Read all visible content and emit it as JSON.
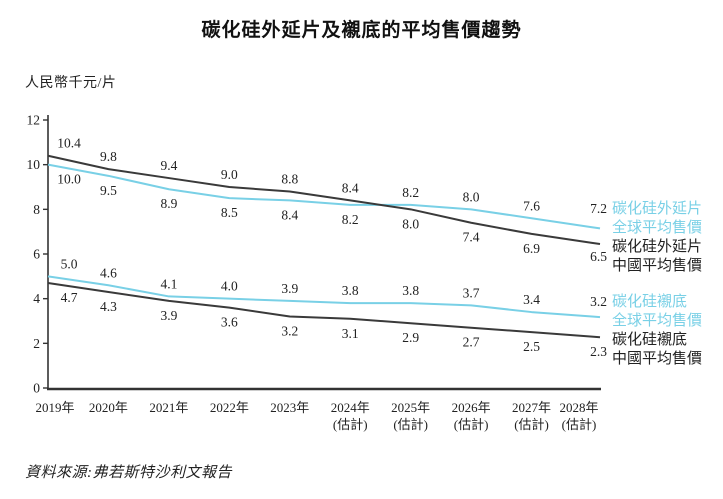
{
  "page": {
    "title": "碳化硅外延片及襯底的平均售價趨勢",
    "unit_label": "人民幣千元/片",
    "source": "資料來源:弗若斯特沙利文報告"
  },
  "colors": {
    "cyan_line": "#79d0e6",
    "black_line": "#3a3a3a",
    "axis": "#333333",
    "text": "#222222"
  },
  "chart_data": {
    "type": "line",
    "title": "碳化硅外延片及襯底的平均售價趨勢",
    "ylabel": "人民幣千元/片",
    "xlabel": "",
    "ylim": [
      0,
      12
    ],
    "yticks": [
      0,
      2,
      4,
      6,
      8,
      10,
      12
    ],
    "grid": false,
    "legend_position": "right",
    "categories": [
      {
        "label": "2019年",
        "sub": ""
      },
      {
        "label": "2020年",
        "sub": ""
      },
      {
        "label": "2021年",
        "sub": ""
      },
      {
        "label": "2022年",
        "sub": ""
      },
      {
        "label": "2023年",
        "sub": ""
      },
      {
        "label": "2024年",
        "sub": "(估計)"
      },
      {
        "label": "2025年",
        "sub": "(估計)"
      },
      {
        "label": "2026年",
        "sub": "(估計)"
      },
      {
        "label": "2027年",
        "sub": "(估計)"
      },
      {
        "label": "2028年",
        "sub": "(估計)"
      }
    ],
    "series": [
      {
        "name": "碳化硅外延片全球平均售價",
        "color": "#79d0e6",
        "values": [
          10.0,
          9.5,
          8.9,
          8.5,
          8.4,
          8.2,
          8.2,
          8.0,
          7.6,
          7.2
        ]
      },
      {
        "name": "碳化硅外延片中國平均售價",
        "color": "#3a3a3a",
        "values": [
          10.4,
          9.8,
          9.4,
          9.0,
          8.8,
          8.4,
          8.0,
          7.4,
          6.9,
          6.5
        ]
      },
      {
        "name": "碳化硅襯底全球平均售價",
        "color": "#79d0e6",
        "values": [
          5.0,
          4.6,
          4.1,
          4.0,
          3.9,
          3.8,
          3.8,
          3.7,
          3.4,
          3.2
        ]
      },
      {
        "name": "碳化硅襯底中國平均售價",
        "color": "#3a3a3a",
        "values": [
          4.7,
          4.3,
          3.9,
          3.6,
          3.2,
          3.1,
          2.9,
          2.7,
          2.5,
          2.3
        ]
      }
    ],
    "label_pairs": [
      [
        0,
        1
      ],
      [
        2,
        3
      ]
    ]
  },
  "legend": {
    "items": [
      {
        "value": "7.2",
        "line1": "碳化硅外延片",
        "line2": "全球平均售價",
        "color": "#79d0e6"
      },
      {
        "value": "6.5",
        "line1": "碳化硅外延片",
        "line2": "中國平均售價",
        "color": "#222222"
      },
      {
        "value": "3.2",
        "line1": "碳化硅襯底",
        "line2": "全球平均售價",
        "color": "#79d0e6"
      },
      {
        "value": "2.3",
        "line1": "碳化硅襯底",
        "line2": "中國平均售價",
        "color": "#222222"
      }
    ]
  }
}
